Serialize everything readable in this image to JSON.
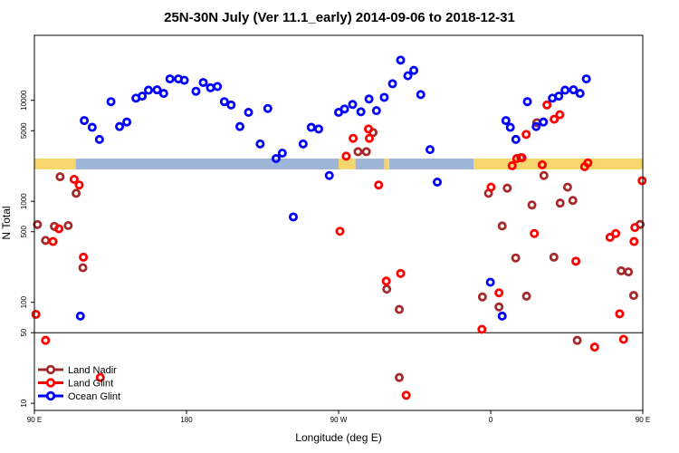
{
  "chart_data": {
    "type": "scatter",
    "title": "25N-30N July (Ver 11.1_early)   2014-09-06 to 2018-12-31",
    "xlabel": "Longitude (deg E)",
    "ylabel": "N Total",
    "y_scale": "log",
    "xlim": [
      90,
      450
    ],
    "ylim": [
      8.5,
      44000
    ],
    "x_ticks": [
      {
        "value": 90,
        "label": "90 E"
      },
      {
        "value": 180,
        "label": "180"
      },
      {
        "value": 270,
        "label": "90 W"
      },
      {
        "value": 360,
        "label": "0"
      },
      {
        "value": 450,
        "label": "90 E"
      },
      {
        "value": 540,
        "label": "180"
      }
    ],
    "y_ticks": [
      {
        "value": 10,
        "label": "10"
      },
      {
        "value": 50,
        "label": "50"
      },
      {
        "value": 100,
        "label": "100"
      },
      {
        "value": 500,
        "label": "500"
      },
      {
        "value": 1000,
        "label": "1000"
      },
      {
        "value": 5000,
        "label": "5000"
      },
      {
        "value": 10000,
        "label": "10000"
      }
    ],
    "reference_line": 50,
    "legend_position": "bottom-left",
    "colors": {
      "land_nadir": "#a52a2a",
      "land_glint": "#ff0000",
      "ocean_glint": "#0000ff",
      "band_land": "#f5d76e",
      "band_ocean": "#9fb6d8"
    },
    "band_segments": [
      {
        "x0": 90,
        "x1": 114.5,
        "surface": "land"
      },
      {
        "x0": 114.5,
        "x1": 270,
        "surface": "ocean"
      },
      {
        "x0": 270,
        "x1": 280,
        "surface": "land"
      },
      {
        "x0": 280,
        "x1": 297,
        "surface": "ocean"
      },
      {
        "x0": 297,
        "x1": 300,
        "surface": "land"
      },
      {
        "x0": 300,
        "x1": 350,
        "surface": "ocean"
      },
      {
        "x0": 350,
        "x1": 365,
        "surface": "land"
      },
      {
        "x0": 365,
        "x1": 350,
        "surface": "land"
      },
      {
        "x0": 355,
        "x1": 470,
        "surface": "land"
      },
      {
        "x0": 470,
        "x1": 540,
        "surface": "ocean"
      }
    ],
    "series": [
      {
        "name": "Land Nadir",
        "color": "#a52a2a",
        "points": [
          [
            91.8,
            589
          ],
          [
            96.6,
            410
          ],
          [
            101.8,
            565
          ],
          [
            105.2,
            1750
          ],
          [
            110.0,
            575
          ],
          [
            114.7,
            1200
          ],
          [
            118.7,
            220
          ],
          [
            281.5,
            3100
          ],
          [
            286.4,
            3100
          ],
          [
            290.4,
            4800
          ],
          [
            298.5,
            135
          ],
          [
            305.9,
            85
          ],
          [
            305.9,
            18
          ],
          [
            355.1,
            113
          ],
          [
            358.7,
            1200
          ],
          [
            364.9,
            90
          ],
          [
            366.8,
            570
          ],
          [
            369.8,
            1350
          ],
          [
            374.8,
            275
          ],
          [
            377.8,
            2700
          ],
          [
            381.2,
            115
          ],
          [
            384.4,
            920
          ],
          [
            387.3,
            6000
          ],
          [
            391.5,
            1800
          ],
          [
            397.4,
            280
          ],
          [
            401.1,
            960
          ],
          [
            405.5,
            1380
          ],
          [
            408.6,
            1020
          ],
          [
            411.2,
            42
          ],
          [
            437.2,
            205
          ],
          [
            441.5,
            200
          ],
          [
            444.6,
            117
          ],
          [
            448.4,
            590
          ],
          [
            451.6,
            440
          ],
          [
            455.5,
            560
          ],
          [
            459.0,
            550
          ],
          [
            462.9,
            590
          ],
          [
            465.8,
            1750
          ],
          [
            471.1,
            1200
          ],
          [
            474.1,
            220
          ]
        ]
      },
      {
        "name": "Land Glint",
        "color": "#ff0000",
        "points": [
          [
            90.9,
            76
          ],
          [
            96.6,
            42
          ],
          [
            101.0,
            400
          ],
          [
            104.5,
            535
          ],
          [
            113.5,
            1650
          ],
          [
            116.5,
            1450
          ],
          [
            119.0,
            280
          ],
          [
            129.0,
            18
          ],
          [
            270.8,
            505
          ],
          [
            274.5,
            2800
          ],
          [
            278.6,
            4200
          ],
          [
            287.7,
            5200
          ],
          [
            288.2,
            4200
          ],
          [
            293.7,
            1450
          ],
          [
            298.2,
            162
          ],
          [
            306.7,
            193
          ],
          [
            310.0,
            12
          ],
          [
            354.8,
            54
          ],
          [
            360.2,
            1380
          ],
          [
            364.9,
            124
          ],
          [
            372.7,
            2250
          ],
          [
            375.4,
            2650
          ],
          [
            378.5,
            2700
          ],
          [
            381.0,
            4600
          ],
          [
            385.8,
            480
          ],
          [
            390.5,
            2300
          ],
          [
            393.3,
            9000
          ],
          [
            397.6,
            6500
          ],
          [
            400.9,
            7200
          ],
          [
            410.4,
            255
          ],
          [
            415.6,
            2200
          ],
          [
            417.5,
            2400
          ],
          [
            421.5,
            36
          ],
          [
            430.6,
            440
          ],
          [
            434.0,
            480
          ],
          [
            436.3,
            77
          ],
          [
            438.6,
            43
          ],
          [
            444.8,
            400
          ],
          [
            445.3,
            550
          ],
          [
            449.6,
            1600
          ],
          [
            453.8,
            1450
          ],
          [
            460.2,
            280
          ],
          [
            465.0,
            17
          ]
        ]
      },
      {
        "name": "Ocean Glint",
        "color": "#0000ff",
        "points": [
          [
            117.2,
            73
          ],
          [
            119.5,
            6300
          ],
          [
            124.2,
            5400
          ],
          [
            128.5,
            4100
          ],
          [
            135.3,
            9700
          ],
          [
            140.4,
            5500
          ],
          [
            144.7,
            6100
          ],
          [
            150.1,
            10500
          ],
          [
            153.8,
            11000
          ],
          [
            157.5,
            12600
          ],
          [
            162.6,
            12700
          ],
          [
            166.5,
            11700
          ],
          [
            170.2,
            16300
          ],
          [
            175.2,
            16300
          ],
          [
            178.7,
            15800
          ],
          [
            185.6,
            12300
          ],
          [
            189.9,
            15000
          ],
          [
            194.2,
            13300
          ],
          [
            198.3,
            13700
          ],
          [
            202.4,
            9700
          ],
          [
            206.4,
            9000
          ],
          [
            211.6,
            5500
          ],
          [
            216.7,
            7600
          ],
          [
            223.6,
            3700
          ],
          [
            228.1,
            8300
          ],
          [
            233.0,
            2650
          ],
          [
            236.7,
            3000
          ],
          [
            243.2,
            700
          ],
          [
            249.0,
            3700
          ],
          [
            253.8,
            5400
          ],
          [
            258.2,
            5200
          ],
          [
            264.5,
            1800
          ],
          [
            270.0,
            7600
          ],
          [
            273.5,
            8200
          ],
          [
            278.3,
            9100
          ],
          [
            283.2,
            7700
          ],
          [
            288.0,
            10300
          ],
          [
            292.4,
            7900
          ],
          [
            297.0,
            10700
          ],
          [
            301.9,
            14600
          ],
          [
            306.7,
            25000
          ],
          [
            311.0,
            17500
          ],
          [
            314.5,
            19800
          ],
          [
            318.6,
            11400
          ],
          [
            324.1,
            3250
          ],
          [
            328.4,
            1550
          ],
          [
            359.8,
            158
          ],
          [
            366.8,
            73
          ],
          [
            369.0,
            6300
          ],
          [
            371.6,
            5400
          ],
          [
            374.9,
            4100
          ],
          [
            381.7,
            9700
          ],
          [
            386.9,
            5500
          ],
          [
            391.2,
            6100
          ],
          [
            396.5,
            10500
          ],
          [
            400.3,
            11000
          ],
          [
            404.0,
            12600
          ],
          [
            409.0,
            12700
          ],
          [
            412.9,
            11700
          ],
          [
            416.6,
            16300
          ]
        ]
      }
    ]
  }
}
